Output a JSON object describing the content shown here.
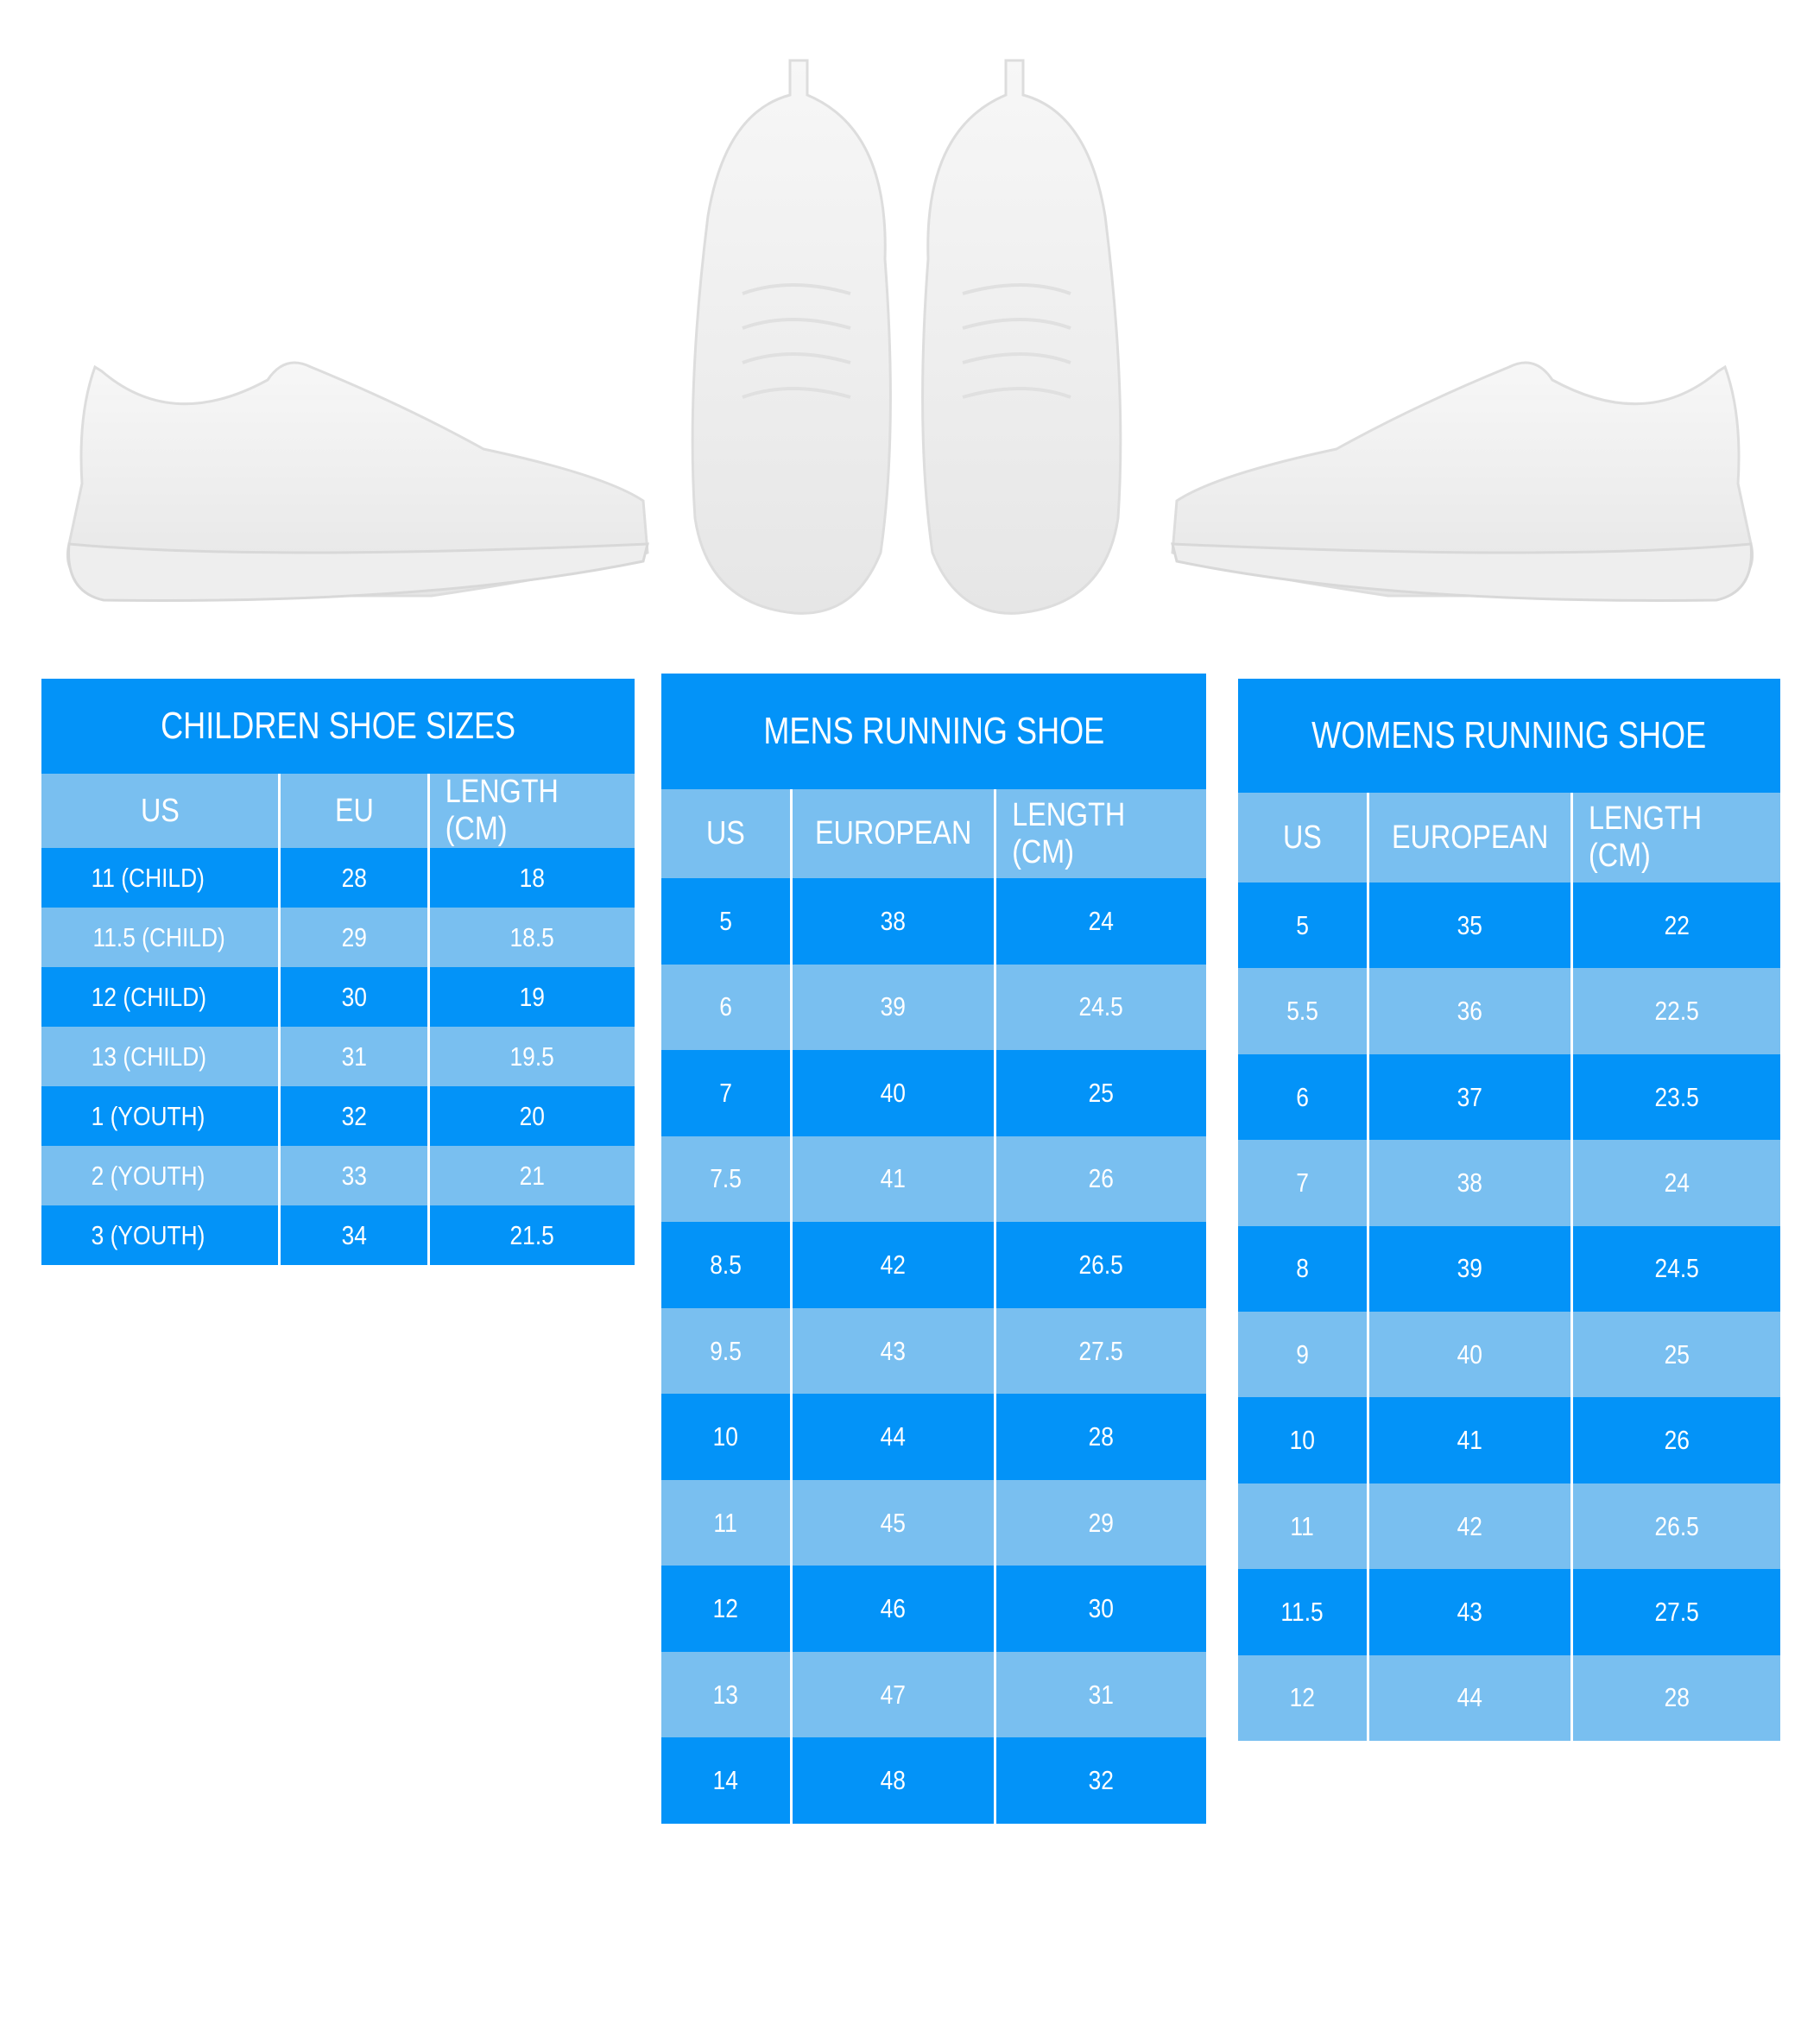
{
  "colors": {
    "dark_row": "#0393f8",
    "light_row": "#79bff0",
    "text": "#ffffff"
  },
  "images": [
    "sneaker-side-left",
    "sneakers-top-pair",
    "sneaker-side-right"
  ],
  "children": {
    "title": "CHILDREN SHOE SIZES",
    "headers": [
      "US",
      "EU",
      "LENGTH (CM)"
    ],
    "rows": [
      [
        "11 (CHILD)",
        "28",
        "18"
      ],
      [
        "11.5 (CHILD)",
        "29",
        "18.5"
      ],
      [
        "12 (CHILD)",
        "30",
        "19"
      ],
      [
        "13 (CHILD)",
        "31",
        "19.5"
      ],
      [
        "1 (YOUTH)",
        "32",
        "20"
      ],
      [
        "2 (YOUTH)",
        "33",
        "21"
      ],
      [
        "3 (YOUTH)",
        "34",
        "21.5"
      ]
    ]
  },
  "mens": {
    "title": "MENS RUNNING SHOE",
    "headers": [
      "US",
      "EUROPEAN",
      "LENGTH (CM)"
    ],
    "rows": [
      [
        "5",
        "38",
        "24"
      ],
      [
        "6",
        "39",
        "24.5"
      ],
      [
        "7",
        "40",
        "25"
      ],
      [
        "7.5",
        "41",
        "26"
      ],
      [
        "8.5",
        "42",
        "26.5"
      ],
      [
        "9.5",
        "43",
        "27.5"
      ],
      [
        "10",
        "44",
        "28"
      ],
      [
        "11",
        "45",
        "29"
      ],
      [
        "12",
        "46",
        "30"
      ],
      [
        "13",
        "47",
        "31"
      ],
      [
        "14",
        "48",
        "32"
      ]
    ]
  },
  "womens": {
    "title": "WOMENS RUNNING SHOE",
    "headers": [
      "US",
      "EUROPEAN",
      "LENGTH (CM)"
    ],
    "rows": [
      [
        "5",
        "35",
        "22"
      ],
      [
        "5.5",
        "36",
        "22.5"
      ],
      [
        "6",
        "37",
        "23.5"
      ],
      [
        "7",
        "38",
        "24"
      ],
      [
        "8",
        "39",
        "24.5"
      ],
      [
        "9",
        "40",
        "25"
      ],
      [
        "10",
        "41",
        "26"
      ],
      [
        "11",
        "42",
        "26.5"
      ],
      [
        "11.5",
        "43",
        "27.5"
      ],
      [
        "12",
        "44",
        "28"
      ]
    ]
  }
}
